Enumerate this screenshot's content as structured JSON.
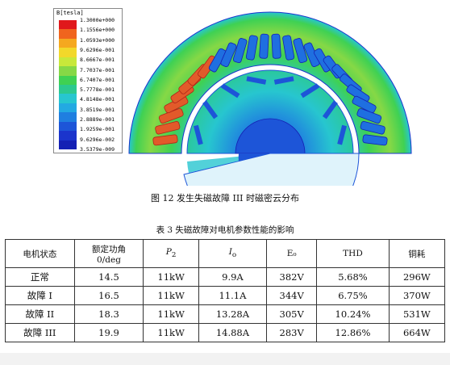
{
  "legend": {
    "title": "B[tesla]",
    "labels": [
      "1.3000e+000",
      "1.1556e+000",
      "1.0593e+000",
      "9.6296e-001",
      "8.6667e-001",
      "7.7037e-001",
      "6.7407e-001",
      "5.7778e-001",
      "4.8148e-001",
      "3.8519e-001",
      "2.8889e-001",
      "1.9259e-001",
      "9.6296e-002",
      "3.5379e-009"
    ],
    "colors": [
      "#e0181b",
      "#f0641e",
      "#f5a81f",
      "#f2d82a",
      "#c8e83a",
      "#86d846",
      "#3fd153",
      "#2cc98f",
      "#27c6cf",
      "#23a9e2",
      "#1f7fe0",
      "#1d55d8",
      "#1b34cc",
      "#1420b4"
    ]
  },
  "figure_caption": "图 12  发生失磁故障 III 时磁密云分布",
  "table": {
    "caption": "表 3 失磁故障对电机参数性能的影响",
    "headers": [
      "电机状态",
      "额定功角\n0/deg",
      "P",
      "I",
      "E₀",
      "THD",
      "铜耗"
    ],
    "header_subscripts": [
      "",
      "",
      "2",
      "o",
      "",
      "",
      ""
    ],
    "rows": [
      [
        "正常",
        "14.5",
        "11kW",
        "9.9A",
        "382V",
        "5.68%",
        "296W"
      ],
      [
        "故障 I",
        "16.5",
        "11kW",
        "11.1A",
        "344V",
        "6.75%",
        "370W"
      ],
      [
        "故障 II",
        "18.3",
        "11kW",
        "13.28A",
        "305V",
        "10.24%",
        "531W"
      ],
      [
        "故障 III",
        "19.9",
        "11kW",
        "14.88A",
        "283V",
        "12.86%",
        "664W"
      ]
    ]
  }
}
